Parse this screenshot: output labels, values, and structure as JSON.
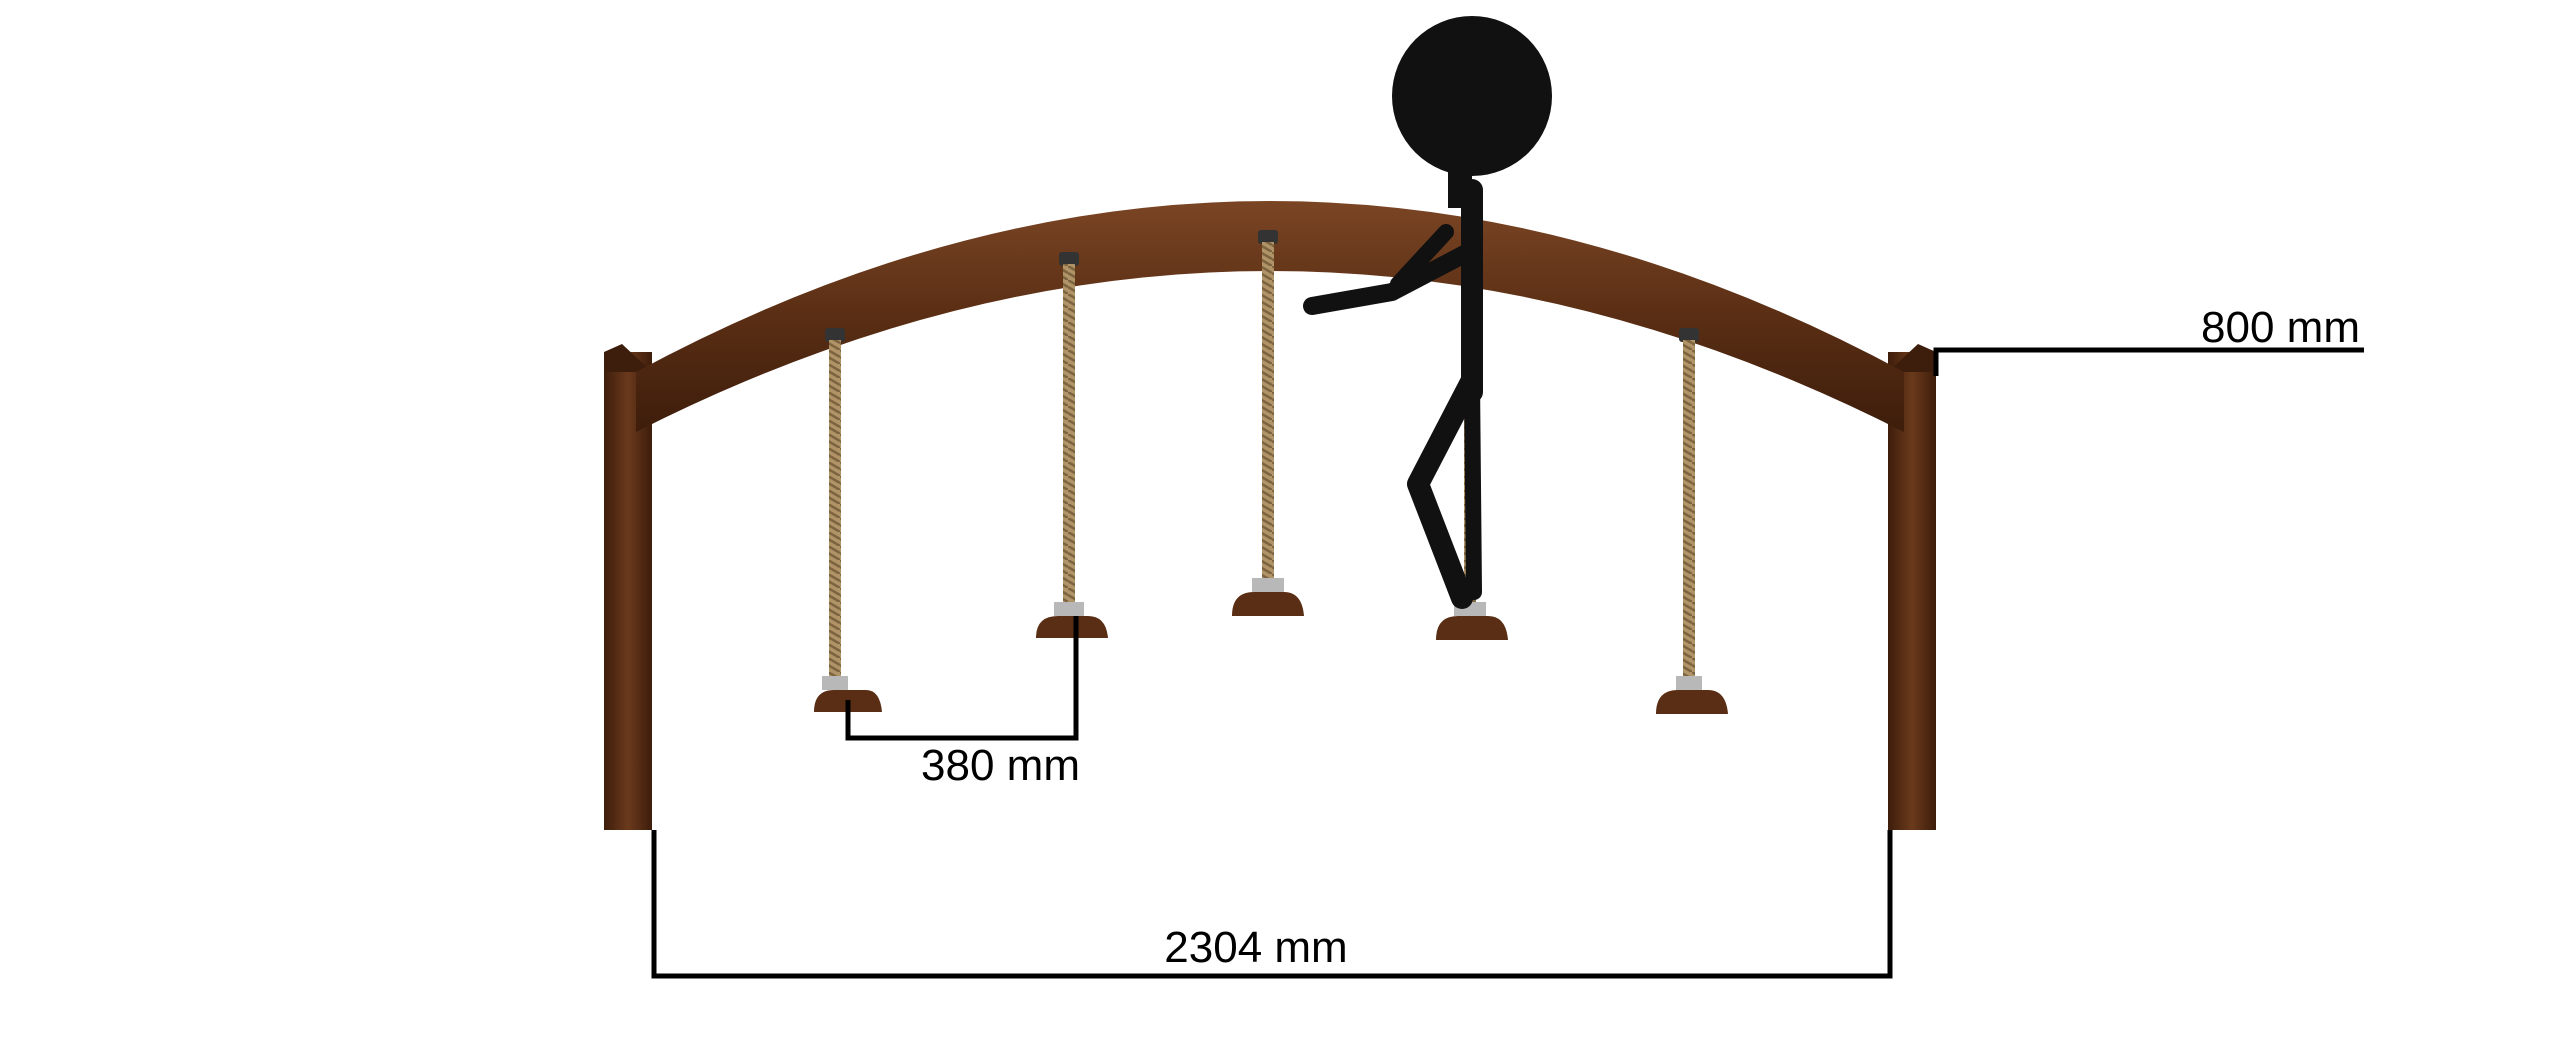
{
  "diagram": {
    "labels": {
      "height": "800 mm",
      "step_spacing": "380 mm",
      "span": "2304 mm"
    },
    "colors": {
      "wood": "#5a2e14",
      "wood_dark": "#3d1d0b",
      "wood_light": "#7a4524",
      "rope": "#a88b5e",
      "metal": "#b8b8b8",
      "figure": "#111111",
      "dimension_line": "#000000",
      "background": "#ffffff"
    },
    "components": {
      "rope_count": 5,
      "posts": 2
    }
  }
}
